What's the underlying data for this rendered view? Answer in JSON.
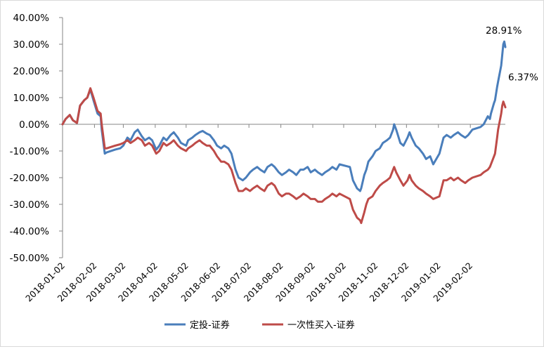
{
  "chart_data": {
    "type": "line",
    "title": "",
    "xlabel": "",
    "ylabel": "",
    "ylim": [
      -0.5,
      0.4
    ],
    "y_ticks": [
      "40.00%",
      "30.00%",
      "20.00%",
      "10.00%",
      "0.00%",
      "-10.00%",
      "-20.00%",
      "-30.00%",
      "-40.00%",
      "-50.00%"
    ],
    "y_tick_values": [
      0.4,
      0.3,
      0.2,
      0.1,
      0.0,
      -0.1,
      -0.2,
      -0.3,
      -0.4,
      -0.5
    ],
    "x_ticks": [
      "2018-01-02",
      "2018-02-02",
      "2018-03-02",
      "2018-04-02",
      "2018-05-02",
      "2018-06-02",
      "2018-07-02",
      "2018-08-02",
      "2018-09-02",
      "2018-10-02",
      "2018-11-02",
      "2018-12-02",
      "2019-01-02",
      "2019-02-02"
    ],
    "xlim": [
      "2018-01-02",
      "2019-03-08"
    ],
    "grid": false,
    "legend_position": "bottom",
    "series": [
      {
        "name": "定投-证券",
        "color": "#4a7ebb",
        "end_label": "28.91%",
        "points": [
          [
            "2018-01-02",
            0.0
          ],
          [
            "2018-01-05",
            0.02
          ],
          [
            "2018-01-09",
            0.035
          ],
          [
            "2018-01-12",
            0.015
          ],
          [
            "2018-01-16",
            0.005
          ],
          [
            "2018-01-19",
            0.07
          ],
          [
            "2018-01-23",
            0.09
          ],
          [
            "2018-01-26",
            0.1
          ],
          [
            "2018-01-29",
            0.13
          ],
          [
            "2018-02-01",
            0.09
          ],
          [
            "2018-02-05",
            0.04
          ],
          [
            "2018-02-08",
            0.03
          ],
          [
            "2018-02-09",
            -0.02
          ],
          [
            "2018-02-12",
            -0.11
          ],
          [
            "2018-02-14",
            -0.105
          ],
          [
            "2018-02-22",
            -0.095
          ],
          [
            "2018-02-27",
            -0.09
          ],
          [
            "2018-03-02",
            -0.08
          ],
          [
            "2018-03-06",
            -0.05
          ],
          [
            "2018-03-09",
            -0.06
          ],
          [
            "2018-03-13",
            -0.03
          ],
          [
            "2018-03-16",
            -0.02
          ],
          [
            "2018-03-20",
            -0.045
          ],
          [
            "2018-03-23",
            -0.06
          ],
          [
            "2018-03-27",
            -0.05
          ],
          [
            "2018-03-30",
            -0.06
          ],
          [
            "2018-04-03",
            -0.095
          ],
          [
            "2018-04-06",
            -0.08
          ],
          [
            "2018-04-10",
            -0.05
          ],
          [
            "2018-04-13",
            -0.06
          ],
          [
            "2018-04-17",
            -0.04
          ],
          [
            "2018-04-20",
            -0.03
          ],
          [
            "2018-04-24",
            -0.05
          ],
          [
            "2018-04-27",
            -0.07
          ],
          [
            "2018-05-02",
            -0.08
          ],
          [
            "2018-05-04",
            -0.06
          ],
          [
            "2018-05-08",
            -0.05
          ],
          [
            "2018-05-11",
            -0.04
          ],
          [
            "2018-05-15",
            -0.03
          ],
          [
            "2018-05-18",
            -0.025
          ],
          [
            "2018-05-22",
            -0.035
          ],
          [
            "2018-05-25",
            -0.04
          ],
          [
            "2018-05-29",
            -0.06
          ],
          [
            "2018-06-01",
            -0.08
          ],
          [
            "2018-06-05",
            -0.09
          ],
          [
            "2018-06-08",
            -0.08
          ],
          [
            "2018-06-12",
            -0.09
          ],
          [
            "2018-06-15",
            -0.11
          ],
          [
            "2018-06-19",
            -0.17
          ],
          [
            "2018-06-22",
            -0.2
          ],
          [
            "2018-06-26",
            -0.21
          ],
          [
            "2018-06-29",
            -0.2
          ],
          [
            "2018-07-03",
            -0.18
          ],
          [
            "2018-07-06",
            -0.17
          ],
          [
            "2018-07-10",
            -0.16
          ],
          [
            "2018-07-13",
            -0.17
          ],
          [
            "2018-07-17",
            -0.18
          ],
          [
            "2018-07-20",
            -0.16
          ],
          [
            "2018-07-24",
            -0.15
          ],
          [
            "2018-07-27",
            -0.16
          ],
          [
            "2018-07-31",
            -0.18
          ],
          [
            "2018-08-03",
            -0.19
          ],
          [
            "2018-08-07",
            -0.18
          ],
          [
            "2018-08-10",
            -0.17
          ],
          [
            "2018-08-14",
            -0.18
          ],
          [
            "2018-08-17",
            -0.19
          ],
          [
            "2018-08-21",
            -0.17
          ],
          [
            "2018-08-24",
            -0.17
          ],
          [
            "2018-08-28",
            -0.16
          ],
          [
            "2018-08-31",
            -0.18
          ],
          [
            "2018-09-04",
            -0.17
          ],
          [
            "2018-09-07",
            -0.18
          ],
          [
            "2018-09-11",
            -0.19
          ],
          [
            "2018-09-14",
            -0.18
          ],
          [
            "2018-09-18",
            -0.17
          ],
          [
            "2018-09-21",
            -0.16
          ],
          [
            "2018-09-25",
            -0.17
          ],
          [
            "2018-09-28",
            -0.15
          ],
          [
            "2018-10-08",
            -0.16
          ],
          [
            "2018-10-11",
            -0.21
          ],
          [
            "2018-10-15",
            -0.24
          ],
          [
            "2018-10-18",
            -0.25
          ],
          [
            "2018-10-19",
            -0.24
          ],
          [
            "2018-10-22",
            -0.19
          ],
          [
            "2018-10-24",
            -0.17
          ],
          [
            "2018-10-26",
            -0.14
          ],
          [
            "2018-10-30",
            -0.12
          ],
          [
            "2018-11-02",
            -0.1
          ],
          [
            "2018-11-06",
            -0.09
          ],
          [
            "2018-11-09",
            -0.07
          ],
          [
            "2018-11-13",
            -0.06
          ],
          [
            "2018-11-16",
            -0.05
          ],
          [
            "2018-11-19",
            -0.02
          ],
          [
            "2018-11-20",
            0.0
          ],
          [
            "2018-11-22",
            -0.02
          ],
          [
            "2018-11-26",
            -0.07
          ],
          [
            "2018-11-29",
            -0.08
          ],
          [
            "2018-12-03",
            -0.05
          ],
          [
            "2018-12-05",
            -0.03
          ],
          [
            "2018-12-07",
            -0.05
          ],
          [
            "2018-12-11",
            -0.08
          ],
          [
            "2018-12-14",
            -0.09
          ],
          [
            "2018-12-18",
            -0.11
          ],
          [
            "2018-12-21",
            -0.13
          ],
          [
            "2018-12-25",
            -0.12
          ],
          [
            "2018-12-28",
            -0.15
          ],
          [
            "2019-01-03",
            -0.11
          ],
          [
            "2019-01-07",
            -0.05
          ],
          [
            "2019-01-10",
            -0.04
          ],
          [
            "2019-01-14",
            -0.05
          ],
          [
            "2019-01-17",
            -0.04
          ],
          [
            "2019-01-21",
            -0.03
          ],
          [
            "2019-01-24",
            -0.04
          ],
          [
            "2019-01-28",
            -0.05
          ],
          [
            "2019-01-31",
            -0.04
          ],
          [
            "2019-02-04",
            -0.02
          ],
          [
            "2019-02-12",
            -0.01
          ],
          [
            "2019-02-15",
            0.0
          ],
          [
            "2019-02-19",
            0.03
          ],
          [
            "2019-02-21",
            0.02
          ],
          [
            "2019-02-22",
            0.04
          ],
          [
            "2019-02-25",
            0.08
          ],
          [
            "2019-02-26",
            0.09
          ],
          [
            "2019-02-28",
            0.14
          ],
          [
            "2019-03-01",
            0.16
          ],
          [
            "2019-03-04",
            0.22
          ],
          [
            "2019-03-05",
            0.26
          ],
          [
            "2019-03-06",
            0.3
          ],
          [
            "2019-03-07",
            0.31
          ],
          [
            "2019-03-08",
            0.2891
          ]
        ]
      },
      {
        "name": "一次性买入-证券",
        "color": "#be4b48",
        "end_label": "6.37%",
        "points": [
          [
            "2018-01-02",
            0.0
          ],
          [
            "2018-01-05",
            0.02
          ],
          [
            "2018-01-09",
            0.035
          ],
          [
            "2018-01-12",
            0.015
          ],
          [
            "2018-01-16",
            0.005
          ],
          [
            "2018-01-19",
            0.07
          ],
          [
            "2018-01-23",
            0.09
          ],
          [
            "2018-01-26",
            0.1
          ],
          [
            "2018-01-29",
            0.135
          ],
          [
            "2018-02-01",
            0.1
          ],
          [
            "2018-02-05",
            0.05
          ],
          [
            "2018-02-08",
            0.04
          ],
          [
            "2018-02-09",
            0.0
          ],
          [
            "2018-02-12",
            -0.09
          ],
          [
            "2018-02-14",
            -0.09
          ],
          [
            "2018-02-22",
            -0.08
          ],
          [
            "2018-02-27",
            -0.075
          ],
          [
            "2018-03-02",
            -0.07
          ],
          [
            "2018-03-06",
            -0.06
          ],
          [
            "2018-03-09",
            -0.07
          ],
          [
            "2018-03-13",
            -0.06
          ],
          [
            "2018-03-16",
            -0.05
          ],
          [
            "2018-03-20",
            -0.06
          ],
          [
            "2018-03-23",
            -0.08
          ],
          [
            "2018-03-27",
            -0.07
          ],
          [
            "2018-03-30",
            -0.08
          ],
          [
            "2018-04-03",
            -0.11
          ],
          [
            "2018-04-06",
            -0.1
          ],
          [
            "2018-04-10",
            -0.07
          ],
          [
            "2018-04-13",
            -0.08
          ],
          [
            "2018-04-17",
            -0.07
          ],
          [
            "2018-04-20",
            -0.06
          ],
          [
            "2018-04-24",
            -0.08
          ],
          [
            "2018-04-27",
            -0.09
          ],
          [
            "2018-05-02",
            -0.1
          ],
          [
            "2018-05-04",
            -0.09
          ],
          [
            "2018-05-08",
            -0.08
          ],
          [
            "2018-05-11",
            -0.07
          ],
          [
            "2018-05-15",
            -0.06
          ],
          [
            "2018-05-18",
            -0.07
          ],
          [
            "2018-05-22",
            -0.08
          ],
          [
            "2018-05-25",
            -0.08
          ],
          [
            "2018-05-29",
            -0.1
          ],
          [
            "2018-06-01",
            -0.12
          ],
          [
            "2018-06-05",
            -0.14
          ],
          [
            "2018-06-08",
            -0.14
          ],
          [
            "2018-06-12",
            -0.15
          ],
          [
            "2018-06-15",
            -0.17
          ],
          [
            "2018-06-19",
            -0.22
          ],
          [
            "2018-06-22",
            -0.25
          ],
          [
            "2018-06-26",
            -0.25
          ],
          [
            "2018-06-29",
            -0.24
          ],
          [
            "2018-07-03",
            -0.25
          ],
          [
            "2018-07-06",
            -0.24
          ],
          [
            "2018-07-10",
            -0.23
          ],
          [
            "2018-07-13",
            -0.24
          ],
          [
            "2018-07-17",
            -0.25
          ],
          [
            "2018-07-20",
            -0.23
          ],
          [
            "2018-07-24",
            -0.22
          ],
          [
            "2018-07-27",
            -0.23
          ],
          [
            "2018-07-31",
            -0.26
          ],
          [
            "2018-08-03",
            -0.27
          ],
          [
            "2018-08-07",
            -0.26
          ],
          [
            "2018-08-10",
            -0.26
          ],
          [
            "2018-08-14",
            -0.27
          ],
          [
            "2018-08-17",
            -0.28
          ],
          [
            "2018-08-21",
            -0.27
          ],
          [
            "2018-08-24",
            -0.26
          ],
          [
            "2018-08-28",
            -0.27
          ],
          [
            "2018-08-31",
            -0.28
          ],
          [
            "2018-09-04",
            -0.28
          ],
          [
            "2018-09-07",
            -0.29
          ],
          [
            "2018-09-11",
            -0.29
          ],
          [
            "2018-09-14",
            -0.28
          ],
          [
            "2018-09-18",
            -0.27
          ],
          [
            "2018-09-21",
            -0.26
          ],
          [
            "2018-09-25",
            -0.27
          ],
          [
            "2018-09-28",
            -0.26
          ],
          [
            "2018-10-08",
            -0.28
          ],
          [
            "2018-10-11",
            -0.32
          ],
          [
            "2018-10-15",
            -0.35
          ],
          [
            "2018-10-18",
            -0.36
          ],
          [
            "2018-10-19",
            -0.37
          ],
          [
            "2018-10-22",
            -0.33
          ],
          [
            "2018-10-24",
            -0.3
          ],
          [
            "2018-10-26",
            -0.28
          ],
          [
            "2018-10-30",
            -0.27
          ],
          [
            "2018-11-02",
            -0.25
          ],
          [
            "2018-11-06",
            -0.23
          ],
          [
            "2018-11-09",
            -0.22
          ],
          [
            "2018-11-13",
            -0.21
          ],
          [
            "2018-11-16",
            -0.2
          ],
          [
            "2018-11-19",
            -0.17
          ],
          [
            "2018-11-20",
            -0.16
          ],
          [
            "2018-11-22",
            -0.18
          ],
          [
            "2018-11-26",
            -0.21
          ],
          [
            "2018-11-29",
            -0.23
          ],
          [
            "2018-12-03",
            -0.21
          ],
          [
            "2018-12-05",
            -0.19
          ],
          [
            "2018-12-07",
            -0.21
          ],
          [
            "2018-12-11",
            -0.23
          ],
          [
            "2018-12-14",
            -0.24
          ],
          [
            "2018-12-18",
            -0.25
          ],
          [
            "2018-12-21",
            -0.26
          ],
          [
            "2018-12-25",
            -0.27
          ],
          [
            "2018-12-28",
            -0.28
          ],
          [
            "2019-01-03",
            -0.27
          ],
          [
            "2019-01-07",
            -0.21
          ],
          [
            "2019-01-10",
            -0.21
          ],
          [
            "2019-01-14",
            -0.2
          ],
          [
            "2019-01-17",
            -0.21
          ],
          [
            "2019-01-21",
            -0.2
          ],
          [
            "2019-01-24",
            -0.21
          ],
          [
            "2019-01-28",
            -0.22
          ],
          [
            "2019-01-31",
            -0.21
          ],
          [
            "2019-02-04",
            -0.2
          ],
          [
            "2019-02-12",
            -0.19
          ],
          [
            "2019-02-15",
            -0.18
          ],
          [
            "2019-02-19",
            -0.17
          ],
          [
            "2019-02-21",
            -0.16
          ],
          [
            "2019-02-22",
            -0.15
          ],
          [
            "2019-02-25",
            -0.12
          ],
          [
            "2019-02-26",
            -0.11
          ],
          [
            "2019-02-28",
            -0.05
          ],
          [
            "2019-03-01",
            -0.02
          ],
          [
            "2019-03-04",
            0.04
          ],
          [
            "2019-03-05",
            0.07
          ],
          [
            "2019-03-06",
            0.085
          ],
          [
            "2019-03-07",
            0.075
          ],
          [
            "2019-03-08",
            0.0637
          ]
        ]
      }
    ]
  }
}
